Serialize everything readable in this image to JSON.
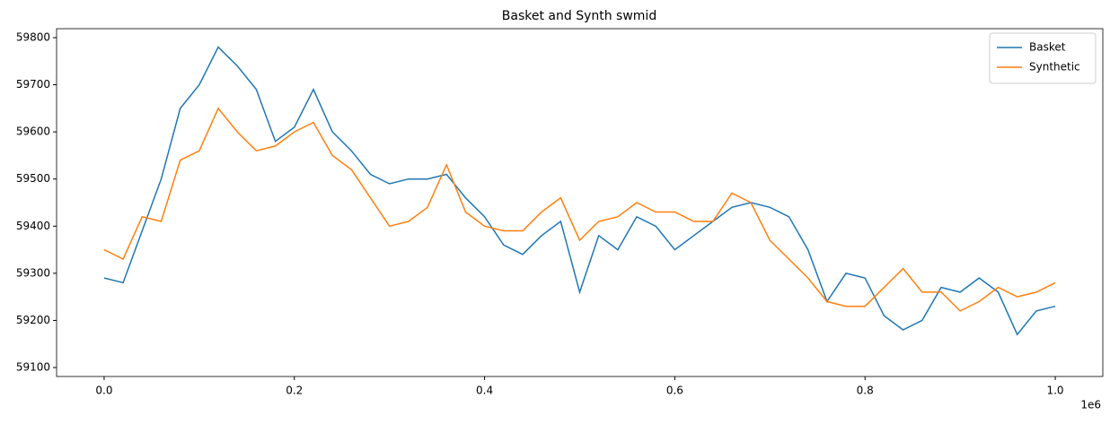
{
  "chart_data": {
    "type": "line",
    "title": "Basket and Synth swmid",
    "x": [
      0,
      20000,
      40000,
      60000,
      80000,
      100000,
      120000,
      140000,
      160000,
      180000,
      200000,
      220000,
      240000,
      260000,
      280000,
      300000,
      320000,
      340000,
      360000,
      380000,
      400000,
      420000,
      440000,
      460000,
      480000,
      500000,
      520000,
      540000,
      560000,
      580000,
      600000,
      620000,
      640000,
      660000,
      680000,
      700000,
      720000,
      740000,
      760000,
      780000,
      800000,
      820000,
      840000,
      860000,
      880000,
      900000,
      920000,
      940000,
      960000,
      980000,
      1000000
    ],
    "series": [
      {
        "name": "Basket",
        "color": "#1f77b4",
        "values": [
          59290,
          59280,
          59390,
          59500,
          59650,
          59700,
          59780,
          59740,
          59690,
          59580,
          59610,
          59690,
          59600,
          59560,
          59510,
          59490,
          59500,
          59500,
          59510,
          59460,
          59420,
          59360,
          59340,
          59380,
          59410,
          59260,
          59380,
          59350,
          59420,
          59400,
          59350,
          59380,
          59410,
          59440,
          59450,
          59440,
          59420,
          59350,
          59240,
          59300,
          59290,
          59210,
          59180,
          59200,
          59270,
          59260,
          59290,
          59260,
          59170,
          59220,
          59230
        ]
      },
      {
        "name": "Synthetic",
        "color": "#ff7f0e",
        "values": [
          59350,
          59330,
          59420,
          59410,
          59540,
          59560,
          59650,
          59600,
          59560,
          59570,
          59600,
          59620,
          59550,
          59520,
          59460,
          59400,
          59410,
          59440,
          59530,
          59430,
          59400,
          59390,
          59390,
          59430,
          59460,
          59370,
          59410,
          59420,
          59450,
          59430,
          59430,
          59410,
          59410,
          59470,
          59450,
          59370,
          59330,
          59290,
          59240,
          59230,
          59230,
          59270,
          59310,
          59260,
          59260,
          59220,
          59240,
          59270,
          59250,
          59260,
          59280
        ]
      }
    ],
    "xlim": [
      -50000,
      1050000
    ],
    "xticks": [
      {
        "value": 0,
        "label": "0.0"
      },
      {
        "value": 200000,
        "label": "0.2"
      },
      {
        "value": 400000,
        "label": "0.4"
      },
      {
        "value": 600000,
        "label": "0.6"
      },
      {
        "value": 800000,
        "label": "0.8"
      },
      {
        "value": 1000000,
        "label": "1.0"
      }
    ],
    "x_offset_label": "1e6",
    "ylim": [
      59081,
      59819
    ],
    "yticks": [
      59100,
      59200,
      59300,
      59400,
      59500,
      59600,
      59700,
      59800
    ],
    "legend": "upper right",
    "grid": false
  }
}
